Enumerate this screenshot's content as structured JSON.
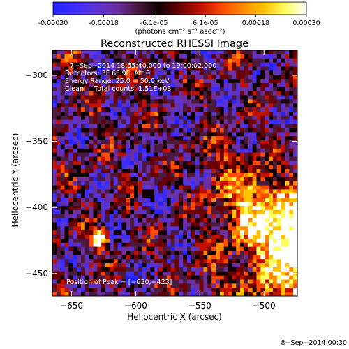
{
  "colorbar": {
    "tick_labels": [
      "-0.00030",
      "-0.00018",
      "-6.1e-05",
      "6.1e-05",
      "0.00018",
      "0.00030"
    ],
    "tick_values": [
      -0.0003,
      -0.00018,
      -6.1e-05,
      6.1e-05,
      0.00018,
      0.0003
    ],
    "range": [
      -0.0003,
      0.0003
    ],
    "unit_label": "(photons cm⁻² s⁻¹ asec⁻²)",
    "colors": [
      "#2323ff",
      "#3b2cff",
      "#5a33d8",
      "#6a2fa0",
      "#4a1a40",
      "#100000",
      "#6a0000",
      "#c01000",
      "#ff4a00",
      "#ff8a00",
      "#ffc400",
      "#ffff60",
      "#ffffff"
    ]
  },
  "chart_data": {
    "type": "heatmap",
    "title": "Reconstructed RHESSI Image",
    "xlabel": "Heliocentric X (arcsec)",
    "ylabel": "Heliocentric Y (arcsec)",
    "xlim": [
      -665,
      -474
    ],
    "ylim": [
      -467,
      -281
    ],
    "x_ticks": [
      -650,
      -600,
      -550,
      -500
    ],
    "x_tick_labels": [
      "−650",
      "−600",
      "−550",
      "−500"
    ],
    "y_ticks": [
      -300,
      -350,
      -400,
      -450
    ],
    "y_tick_labels": [
      "−300",
      "−350",
      "−400",
      "−450"
    ],
    "value_range": [
      -0.0003,
      0.0003
    ],
    "peak": {
      "x": -630,
      "y": -423
    },
    "background": "#000000",
    "annotations": {
      "time_range": "7−Sep−2014 18:55:40.000 to 19:00:02.000",
      "detectors": "Detectors: 3F 6F 9F, Att 0",
      "energy": "Energy Range: 25.0 − 50.0 keV",
      "method": "Clean     Total counts: 1.51E+03",
      "peak_label": "Position of Peak = [−630,−423]"
    }
  },
  "footer": {
    "date": "8−Sep−2014 00:30"
  }
}
